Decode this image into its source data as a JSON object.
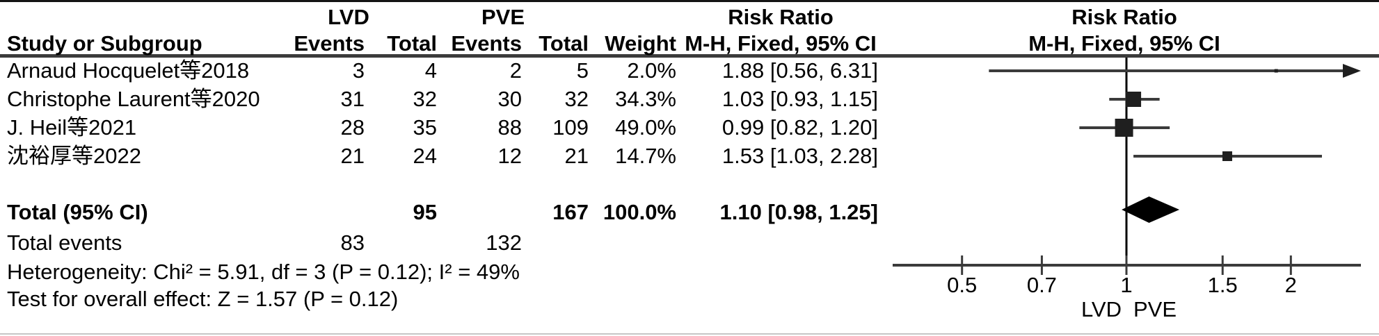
{
  "title_row": {
    "lvd_group": "LVD",
    "pve_group": "PVE",
    "risk_ratio_left": "Risk Ratio",
    "risk_ratio_right": "Risk Ratio"
  },
  "header": {
    "study": "Study or Subgroup",
    "lvd_events": "Events",
    "lvd_total": "Total",
    "pve_events": "Events",
    "pve_total": "Total",
    "weight": "Weight",
    "mh_left": "M-H, Fixed, 95% CI",
    "mh_right": "M-H, Fixed, 95% CI"
  },
  "rows": [
    {
      "study": "Arnaud Hocquelet等2018",
      "lvd_events": "3",
      "lvd_total": "4",
      "pve_events": "2",
      "pve_total": "5",
      "weight": "2.0%",
      "ci_text": "1.88 [0.56, 6.31]"
    },
    {
      "study": "Christophe Laurent等2020",
      "lvd_events": "31",
      "lvd_total": "32",
      "pve_events": "30",
      "pve_total": "32",
      "weight": "34.3%",
      "ci_text": "1.03 [0.93, 1.15]"
    },
    {
      "study": "J. Heil等2021",
      "lvd_events": "28",
      "lvd_total": "35",
      "pve_events": "88",
      "pve_total": "109",
      "weight": "49.0%",
      "ci_text": "0.99 [0.82, 1.20]"
    },
    {
      "study": "沈裕厚等2022",
      "lvd_events": "21",
      "lvd_total": "24",
      "pve_events": "12",
      "pve_total": "21",
      "weight": "14.7%",
      "ci_text": "1.53 [1.03, 2.28]"
    }
  ],
  "total_row": {
    "label": "Total (95% CI)",
    "lvd_total": "95",
    "pve_total": "167",
    "weight": "100.0%",
    "ci_text": "1.10 [0.98, 1.25]"
  },
  "total_events": {
    "label": "Total events",
    "lvd": "83",
    "pve": "132"
  },
  "heterogeneity": "Heterogeneity: Chi² = 5.91, df = 3 (P = 0.12); I² = 49%",
  "overall_effect": "Test for overall effect: Z = 1.57 (P = 0.12)",
  "chart_data": {
    "type": "forest",
    "effect_measure": "Risk Ratio (M-H, Fixed, 95% CI)",
    "scale": "log",
    "null_line": 1,
    "axis_ticks": [
      0.5,
      0.7,
      1,
      1.5,
      2
    ],
    "x_range": [
      0.37,
      2.68
    ],
    "studies": [
      {
        "name": "Arnaud Hocquelet等2018",
        "rr": 1.88,
        "ci_low": 0.56,
        "ci_high": 6.31,
        "weight": 2.0
      },
      {
        "name": "Christophe Laurent等2020",
        "rr": 1.03,
        "ci_low": 0.93,
        "ci_high": 1.15,
        "weight": 34.3
      },
      {
        "name": "J. Heil等2021",
        "rr": 0.99,
        "ci_low": 0.82,
        "ci_high": 1.2,
        "weight": 49.0
      },
      {
        "name": "沈裕厚等2022",
        "rr": 1.53,
        "ci_low": 1.03,
        "ci_high": 2.28,
        "weight": 14.7
      }
    ],
    "total": {
      "rr": 1.1,
      "ci_low": 0.98,
      "ci_high": 1.25
    },
    "xlabel_left": "LVD",
    "xlabel_right": "PVE",
    "colors": {
      "marker": "#1f1f1f",
      "line": "#3b3b3b",
      "diamond": "#000000",
      "null_line": "#000000",
      "axis": "#3b3b3b"
    }
  }
}
